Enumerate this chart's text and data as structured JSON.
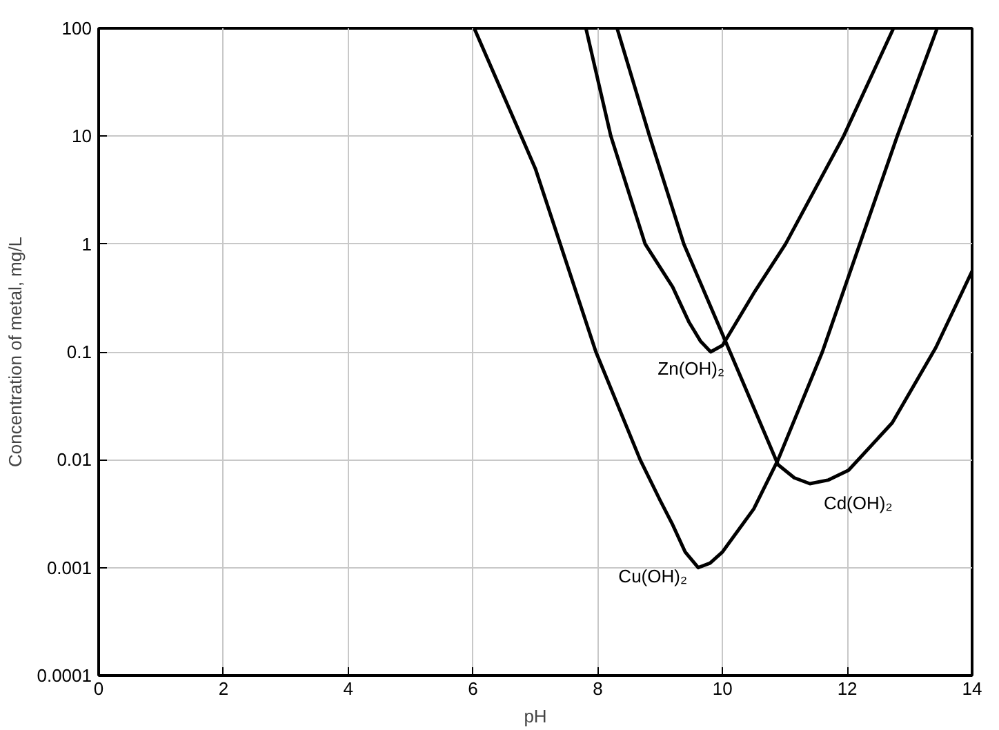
{
  "chart_data": {
    "type": "line",
    "xlabel": "pH",
    "ylabel": "Concentration of metal, mg/L",
    "xlim": [
      0,
      14
    ],
    "xticks": [
      0,
      2,
      4,
      6,
      8,
      10,
      12,
      14
    ],
    "ylim": [
      0.0001,
      100
    ],
    "yticks": [
      0.0001,
      0.001,
      0.01,
      0.1,
      1,
      10,
      100
    ],
    "log": "y",
    "grid": true,
    "marker": "none",
    "line_style": "solid",
    "series": [
      {
        "name": "Cu(OH)₂",
        "color": "#000000",
        "x": [
          6.02,
          7.0,
          7.97,
          8.68,
          9.0,
          9.2,
          9.4,
          9.61,
          9.8,
          10.0,
          10.5,
          10.89,
          11.6,
          12.2,
          12.8,
          13.44
        ],
        "values": [
          100,
          5,
          0.1,
          0.01,
          0.0042,
          0.0025,
          0.0014,
          0.001,
          0.0011,
          0.0014,
          0.0035,
          0.01,
          0.1,
          1,
          10,
          100
        ]
      },
      {
        "name": "Zn(OH)₂",
        "color": "#000000",
        "x": [
          7.81,
          8.21,
          8.76,
          9.2,
          9.46,
          9.65,
          9.81,
          10.0,
          10.5,
          11.01,
          11.94,
          12.74
        ],
        "values": [
          100,
          10,
          1,
          0.4,
          0.19,
          0.125,
          0.1,
          0.115,
          0.35,
          1,
          10,
          100
        ]
      },
      {
        "name": "Cd(OH)₂",
        "color": "#000000",
        "x": [
          8.31,
          8.83,
          9.38,
          10.12,
          10.89,
          11.15,
          11.4,
          11.7,
          12.02,
          12.72,
          13.42,
          14
        ],
        "values": [
          100,
          10,
          1,
          0.1,
          0.009,
          0.0068,
          0.006,
          0.0065,
          0.008,
          0.022,
          0.11,
          0.56
        ]
      }
    ]
  }
}
